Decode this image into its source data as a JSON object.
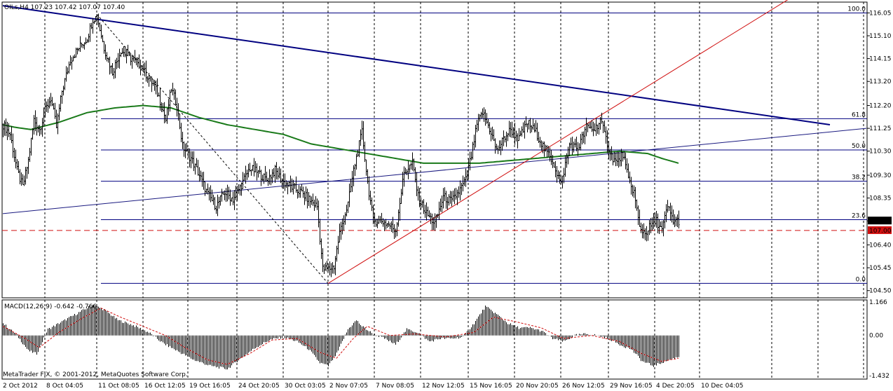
{
  "header": {
    "symbol_line": "OILs,H4  107.23 107.42 107.07 107.40",
    "macd_line": "MACD(12,26,9) -0.642 -0.766",
    "copyright": "MetaTrader FIX, © 2001-2012, MetaQuotes Software Corp."
  },
  "colors": {
    "background": "#ffffff",
    "candle": "#000000",
    "ma": "#1a7a1a",
    "trend_main": "#000080",
    "trend_thin": "#1a1a80",
    "uptrend": "#d01010",
    "fib": "#000080",
    "level_107": "#d01010",
    "price_badge": "#000000",
    "level_badge": "#d01010",
    "macd_hist": "#000000",
    "macd_signal": "#d01010"
  },
  "chart_data": [
    {
      "type": "candlestick",
      "title": "OILs,H4",
      "y_axis": {
        "ylim": [
          104.2,
          116.5
        ],
        "ticks": [
          "116.05",
          "115.10",
          "114.15",
          "113.20",
          "112.20",
          "111.25",
          "110.30",
          "109.30",
          "108.35",
          "107.40",
          "106.40",
          "105.45",
          "104.50"
        ],
        "tick_values": [
          116.05,
          115.1,
          114.15,
          113.2,
          112.2,
          111.25,
          110.3,
          109.3,
          108.35,
          107.4,
          106.4,
          105.45,
          104.5
        ]
      },
      "x_axis": {
        "labels": [
          "2 Oct 2012",
          "8 Oct 04:05",
          "11 Oct 08:05",
          "16 Oct 12:05",
          "19 Oct 16:05",
          "24 Oct 20:05",
          "30 Oct 03:05",
          "2 Nov 07:05",
          "7 Nov 08:05",
          "12 Nov 12:05",
          "15 Nov 16:05",
          "20 Nov 20:05",
          "26 Nov 12:05",
          "29 Nov 16:05",
          "4 Dec 20:05",
          "10 Dec 04:05"
        ],
        "bar_index": [
          0,
          30,
          67,
          100,
          132,
          167,
          200,
          232,
          265,
          298,
          332,
          365,
          398,
          432,
          465,
          497
        ]
      },
      "grid": "vertical-dashed",
      "last_price": "107.40",
      "level_line": "107.00",
      "close_path": [
        [
          0,
          111.4
        ],
        [
          5,
          111.0
        ],
        [
          10,
          109.5
        ],
        [
          14,
          108.8
        ],
        [
          18,
          109.9
        ],
        [
          22,
          111.6
        ],
        [
          26,
          111.2
        ],
        [
          30,
          112.0
        ],
        [
          34,
          112.5
        ],
        [
          38,
          111.3
        ],
        [
          42,
          112.8
        ],
        [
          48,
          114.1
        ],
        [
          54,
          114.6
        ],
        [
          60,
          115.0
        ],
        [
          64,
          115.8
        ],
        [
          67,
          115.9
        ],
        [
          72,
          114.6
        ],
        [
          78,
          113.6
        ],
        [
          84,
          114.5
        ],
        [
          90,
          114.2
        ],
        [
          96,
          114.0
        ],
        [
          102,
          113.5
        ],
        [
          108,
          113.0
        ],
        [
          112,
          112.4
        ],
        [
          116,
          111.6
        ],
        [
          120,
          112.9
        ],
        [
          124,
          112.2
        ],
        [
          128,
          110.5
        ],
        [
          134,
          110.0
        ],
        [
          140,
          109.3
        ],
        [
          146,
          108.5
        ],
        [
          152,
          108.0
        ],
        [
          158,
          108.6
        ],
        [
          164,
          108.3
        ],
        [
          170,
          108.9
        ],
        [
          176,
          109.6
        ],
        [
          182,
          109.4
        ],
        [
          188,
          109.1
        ],
        [
          194,
          109.5
        ],
        [
          200,
          109.0
        ],
        [
          206,
          108.8
        ],
        [
          212,
          108.6
        ],
        [
          218,
          108.3
        ],
        [
          224,
          108.0
        ],
        [
          228,
          105.4
        ],
        [
          232,
          105.4
        ],
        [
          236,
          105.5
        ],
        [
          240,
          106.9
        ],
        [
          246,
          108.1
        ],
        [
          250,
          109.5
        ],
        [
          256,
          111.1
        ],
        [
          260,
          109.0
        ],
        [
          264,
          107.4
        ],
        [
          270,
          107.4
        ],
        [
          276,
          107.2
        ],
        [
          280,
          107.0
        ],
        [
          286,
          109.4
        ],
        [
          292,
          109.8
        ],
        [
          296,
          108.4
        ],
        [
          302,
          107.7
        ],
        [
          308,
          107.3
        ],
        [
          314,
          108.4
        ],
        [
          320,
          108.2
        ],
        [
          326,
          108.7
        ],
        [
          330,
          109.1
        ],
        [
          334,
          110.1
        ],
        [
          338,
          111.4
        ],
        [
          342,
          111.9
        ],
        [
          348,
          111.1
        ],
        [
          352,
          110.3
        ],
        [
          358,
          110.9
        ],
        [
          362,
          111.2
        ],
        [
          368,
          110.8
        ],
        [
          374,
          111.5
        ],
        [
          380,
          111.1
        ],
        [
          386,
          110.4
        ],
        [
          392,
          109.9
        ],
        [
          398,
          108.9
        ],
        [
          404,
          110.6
        ],
        [
          410,
          110.4
        ],
        [
          416,
          111.3
        ],
        [
          422,
          111.2
        ],
        [
          426,
          111.6
        ],
        [
          430,
          110.8
        ],
        [
          434,
          110.1
        ],
        [
          438,
          109.8
        ],
        [
          442,
          110.2
        ],
        [
          446,
          109.1
        ],
        [
          450,
          108.6
        ],
        [
          454,
          107.1
        ],
        [
          458,
          106.9
        ],
        [
          462,
          107.2
        ],
        [
          466,
          107.4
        ],
        [
          470,
          107.0
        ],
        [
          474,
          108.0
        ],
        [
          478,
          107.4
        ],
        [
          482,
          107.4
        ]
      ],
      "ma_path": [
        [
          0,
          111.4
        ],
        [
          8,
          111.3
        ],
        [
          20,
          111.2
        ],
        [
          40,
          111.5
        ],
        [
          60,
          111.9
        ],
        [
          80,
          112.1
        ],
        [
          100,
          112.2
        ],
        [
          120,
          112.1
        ],
        [
          140,
          111.7
        ],
        [
          160,
          111.4
        ],
        [
          180,
          111.2
        ],
        [
          200,
          111.0
        ],
        [
          220,
          110.6
        ],
        [
          240,
          110.4
        ],
        [
          260,
          110.2
        ],
        [
          280,
          110.0
        ],
        [
          300,
          109.8
        ],
        [
          320,
          109.8
        ],
        [
          340,
          109.8
        ],
        [
          360,
          109.9
        ],
        [
          380,
          110.0
        ],
        [
          400,
          110.1
        ],
        [
          420,
          110.2
        ],
        [
          440,
          110.3
        ],
        [
          460,
          110.2
        ],
        [
          470,
          110.0
        ],
        [
          482,
          109.8
        ]
      ],
      "trendlines": [
        {
          "name": "main-downtrend",
          "from": [
            0,
            116.35
          ],
          "to": [
            590,
            111.4
          ]
        },
        {
          "name": "thin-uptrend",
          "from": [
            0,
            107.7
          ],
          "to": [
            616,
            111.25
          ]
        },
        {
          "name": "red-uptrend",
          "from": [
            232,
            104.8
          ],
          "to": [
            560,
            116.6
          ]
        },
        {
          "name": "dashed-fib-base",
          "from": [
            67,
            116.0
          ],
          "to": [
            232,
            104.8
          ]
        }
      ],
      "fibonacci": [
        {
          "label": "100.0",
          "value": 116.05
        },
        {
          "label": "61.8",
          "value": 111.65
        },
        {
          "label": "50.0",
          "value": 110.35
        },
        {
          "label": "38.2",
          "value": 109.05
        },
        {
          "label": "23.6",
          "value": 107.45
        },
        {
          "label": "0.0",
          "value": 104.8
        }
      ]
    },
    {
      "type": "bar",
      "title": "MACD(12,26,9)",
      "y_axis": {
        "ylim": [
          -1.432,
          1.166
        ],
        "ticks": [
          "1.166",
          "0.00",
          "-1.432"
        ],
        "tick_values": [
          1.166,
          0.0,
          -1.432
        ]
      },
      "macd_path": [
        [
          0,
          0.4
        ],
        [
          10,
          0.0
        ],
        [
          18,
          -0.5
        ],
        [
          24,
          -0.6
        ],
        [
          32,
          0.2
        ],
        [
          44,
          0.5
        ],
        [
          56,
          0.8
        ],
        [
          64,
          1.0
        ],
        [
          72,
          0.85
        ],
        [
          82,
          0.5
        ],
        [
          92,
          0.35
        ],
        [
          104,
          0.1
        ],
        [
          114,
          -0.25
        ],
        [
          124,
          -0.5
        ],
        [
          136,
          -0.8
        ],
        [
          148,
          -1.0
        ],
        [
          160,
          -1.1
        ],
        [
          168,
          -0.8
        ],
        [
          180,
          -0.4
        ],
        [
          190,
          -0.15
        ],
        [
          200,
          -0.05
        ],
        [
          210,
          -0.2
        ],
        [
          218,
          -0.45
        ],
        [
          226,
          -0.9
        ],
        [
          232,
          -1.0
        ],
        [
          238,
          -0.6
        ],
        [
          246,
          0.2
        ],
        [
          252,
          0.5
        ],
        [
          256,
          0.3
        ],
        [
          264,
          0.05
        ],
        [
          272,
          -0.1
        ],
        [
          280,
          -0.3
        ],
        [
          288,
          0.2
        ],
        [
          296,
          0.1
        ],
        [
          304,
          -0.2
        ],
        [
          312,
          -0.1
        ],
        [
          320,
          -0.1
        ],
        [
          328,
          -0.05
        ],
        [
          336,
          0.4
        ],
        [
          344,
          0.95
        ],
        [
          352,
          0.7
        ],
        [
          360,
          0.4
        ],
        [
          368,
          0.25
        ],
        [
          376,
          0.25
        ],
        [
          384,
          0.15
        ],
        [
          392,
          -0.1
        ],
        [
          400,
          -0.2
        ],
        [
          408,
          0.0
        ],
        [
          416,
          0.05
        ],
        [
          424,
          0.0
        ],
        [
          432,
          -0.1
        ],
        [
          440,
          -0.3
        ],
        [
          448,
          -0.45
        ],
        [
          456,
          -0.85
        ],
        [
          464,
          -1.0
        ],
        [
          472,
          -0.85
        ],
        [
          482,
          -0.7
        ]
      ],
      "signal_path": [
        [
          0,
          0.3
        ],
        [
          16,
          -0.1
        ],
        [
          26,
          -0.4
        ],
        [
          40,
          0.1
        ],
        [
          56,
          0.55
        ],
        [
          70,
          0.9
        ],
        [
          84,
          0.6
        ],
        [
          100,
          0.3
        ],
        [
          116,
          0.0
        ],
        [
          130,
          -0.4
        ],
        [
          146,
          -0.8
        ],
        [
          160,
          -0.95
        ],
        [
          176,
          -0.6
        ],
        [
          192,
          -0.15
        ],
        [
          210,
          -0.1
        ],
        [
          226,
          -0.55
        ],
        [
          238,
          -0.75
        ],
        [
          250,
          -0.1
        ],
        [
          260,
          0.3
        ],
        [
          276,
          0.0
        ],
        [
          294,
          0.05
        ],
        [
          316,
          -0.05
        ],
        [
          336,
          0.1
        ],
        [
          350,
          0.6
        ],
        [
          366,
          0.45
        ],
        [
          384,
          0.25
        ],
        [
          400,
          -0.1
        ],
        [
          420,
          0.0
        ],
        [
          440,
          -0.2
        ],
        [
          456,
          -0.6
        ],
        [
          470,
          -0.85
        ],
        [
          482,
          -0.75
        ]
      ]
    }
  ]
}
